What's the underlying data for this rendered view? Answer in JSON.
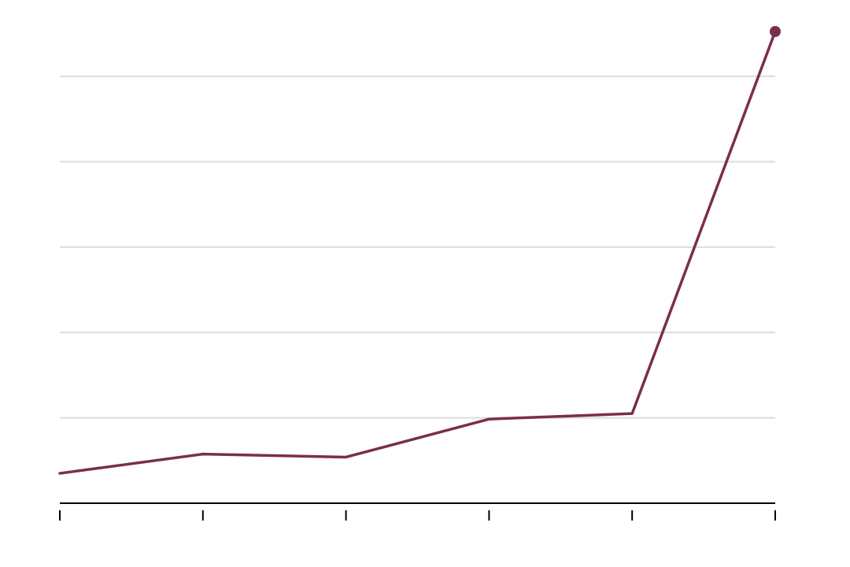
{
  "chart_data": {
    "type": "line",
    "title": "",
    "xlabel": "",
    "ylabel": "",
    "x": [
      0,
      1,
      2,
      3,
      4,
      5
    ],
    "series": [
      {
        "values": [
          0.7,
          1.15,
          1.08,
          1.97,
          2.1,
          11.05
        ],
        "color": "#7a2e4f"
      }
    ],
    "xlim": [
      0,
      5
    ],
    "ylim": [
      0,
      11.05
    ],
    "yticks": [
      0,
      2,
      4,
      6,
      8,
      10
    ],
    "grid": true,
    "legend": "none",
    "end_marker": true,
    "colors": {
      "series": "#7a2e4f",
      "grid": "#dcdcdc",
      "axis": "#000000"
    }
  }
}
